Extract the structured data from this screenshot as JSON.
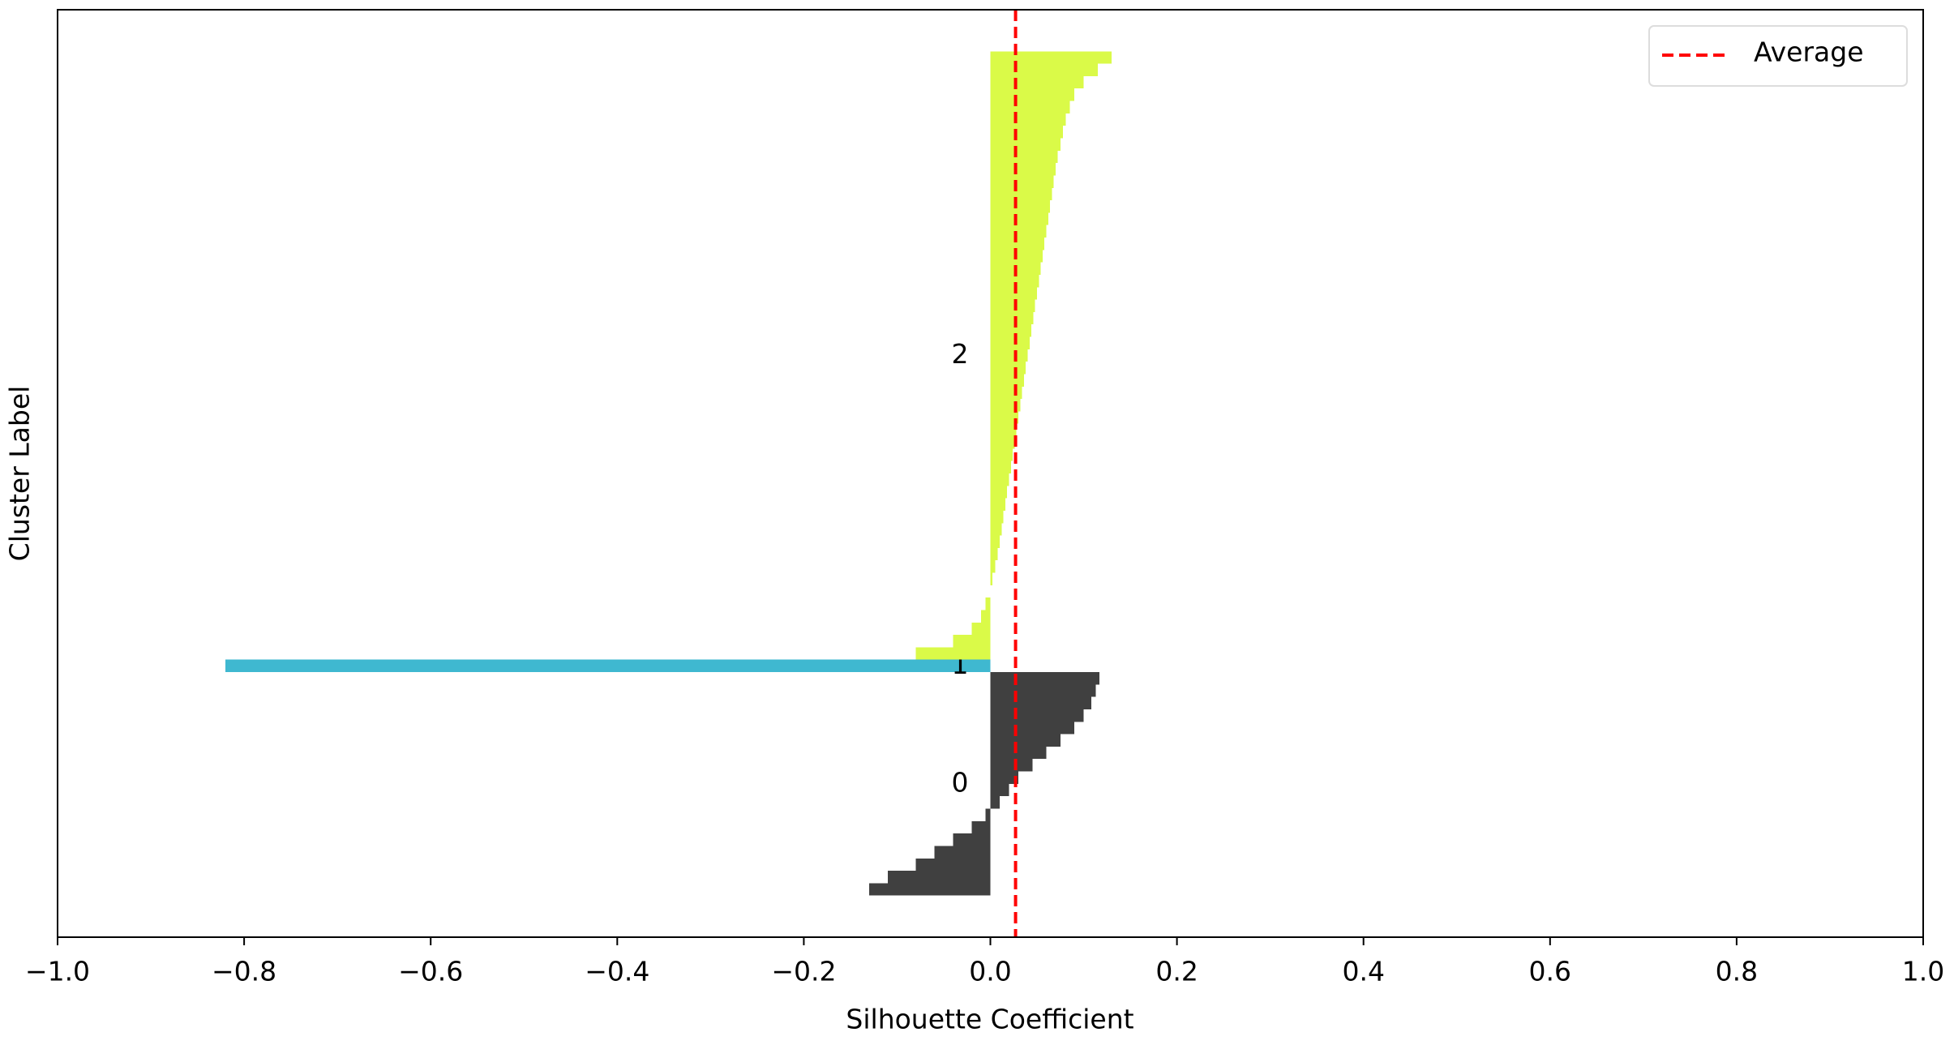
{
  "chart_data": {
    "type": "silhouette",
    "xlabel": "Silhouette Coefficient",
    "ylabel": "Cluster Label",
    "xlim": [
      -1.0,
      1.0
    ],
    "xticks": [
      {
        "value": -1.0,
        "label": "−1.0"
      },
      {
        "value": -0.8,
        "label": "−0.8"
      },
      {
        "value": -0.6,
        "label": "−0.6"
      },
      {
        "value": -0.4,
        "label": "−0.4"
      },
      {
        "value": -0.2,
        "label": "−0.2"
      },
      {
        "value": 0,
        "label": "0.0"
      },
      0.2,
      0.4,
      0.6,
      0.8,
      {
        "value": 1,
        "label": "1.0"
      }
    ],
    "series": [
      {
        "name": "0",
        "color": "#404040",
        "values": [
          -0.13,
          -0.11,
          -0.08,
          -0.06,
          -0.04,
          -0.02,
          -0.005,
          0.01,
          0.02,
          0.03,
          0.045,
          0.06,
          0.075,
          0.09,
          0.1,
          0.108,
          0.113,
          0.117
        ]
      },
      {
        "name": "1",
        "color": "#3fb8d0",
        "values": [
          -0.82
        ]
      },
      {
        "name": "2",
        "color": "#dafa48",
        "values": [
          -0.08,
          -0.04,
          -0.02,
          -0.01,
          -0.005,
          0.0,
          0.002,
          0.005,
          0.008,
          0.01,
          0.012,
          0.014,
          0.016,
          0.018,
          0.02,
          0.022,
          0.024,
          0.026,
          0.028,
          0.03,
          0.032,
          0.034,
          0.036,
          0.038,
          0.04,
          0.042,
          0.044,
          0.046,
          0.048,
          0.05,
          0.052,
          0.054,
          0.056,
          0.058,
          0.06,
          0.062,
          0.064,
          0.066,
          0.068,
          0.07,
          0.072,
          0.075,
          0.078,
          0.081,
          0.085,
          0.09,
          0.1,
          0.115,
          0.13
        ]
      }
    ],
    "average": {
      "name": "Average",
      "value": 0.027,
      "color": "#ff0000"
    },
    "legend": "upper right"
  }
}
